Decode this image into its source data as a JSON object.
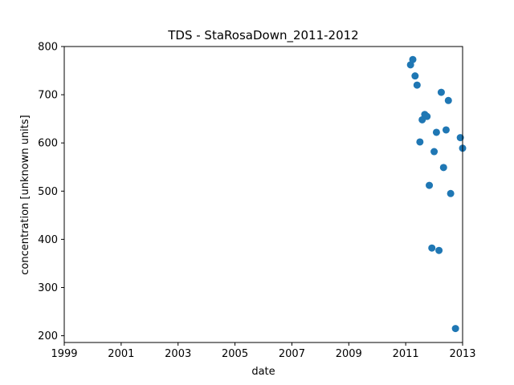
{
  "chart_data": {
    "type": "scatter",
    "title": "TDS - StaRosaDown_2011-2012",
    "xlabel": "date",
    "ylabel": "concentration [unknown units]",
    "xlim": [
      1999,
      2013
    ],
    "ylim": [
      186,
      800
    ],
    "x_ticks": [
      "1999",
      "2001",
      "2003",
      "2005",
      "2007",
      "2009",
      "2011",
      "2013"
    ],
    "y_ticks": [
      200,
      300,
      400,
      500,
      600,
      700,
      800
    ],
    "grid": false,
    "marker_color": "#1f77b4",
    "series": [
      {
        "points": [
          {
            "x": 2011.17,
            "y": 762
          },
          {
            "x": 2011.25,
            "y": 773
          },
          {
            "x": 2011.33,
            "y": 739
          },
          {
            "x": 2011.4,
            "y": 720
          },
          {
            "x": 2011.5,
            "y": 602
          },
          {
            "x": 2011.58,
            "y": 648
          },
          {
            "x": 2011.67,
            "y": 659
          },
          {
            "x": 2011.75,
            "y": 655
          },
          {
            "x": 2011.83,
            "y": 512
          },
          {
            "x": 2011.92,
            "y": 382
          },
          {
            "x": 2012.0,
            "y": 582
          },
          {
            "x": 2012.08,
            "y": 622
          },
          {
            "x": 2012.17,
            "y": 377
          },
          {
            "x": 2012.25,
            "y": 705
          },
          {
            "x": 2012.33,
            "y": 549
          },
          {
            "x": 2012.42,
            "y": 627
          },
          {
            "x": 2012.5,
            "y": 688
          },
          {
            "x": 2012.58,
            "y": 495
          },
          {
            "x": 2012.75,
            "y": 215
          },
          {
            "x": 2012.92,
            "y": 611
          },
          {
            "x": 2013.0,
            "y": 589
          }
        ]
      }
    ]
  }
}
